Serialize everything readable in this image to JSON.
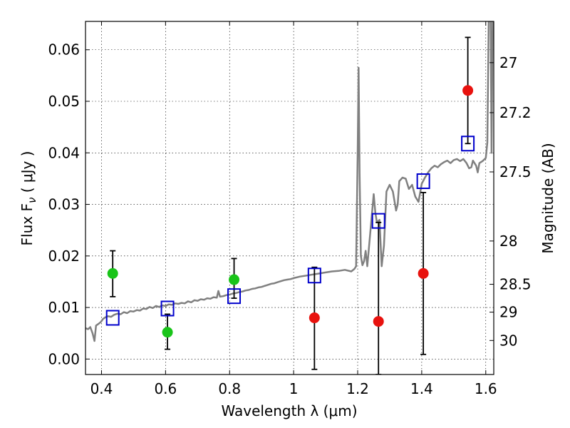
{
  "chart_data": {
    "type": "scatter",
    "xlabel": "Wavelength  λ (μm)",
    "ylabel": "Flux  F",
    "ylabel_sub": "ν",
    "ylabel_unit": "  ( μJy )",
    "y2label": "Magnitude (AB)",
    "xlim": [
      0.35,
      1.625
    ],
    "ylim": [
      -0.003,
      0.0655
    ],
    "grid": true,
    "x_ticks": [
      {
        "value": 0.4,
        "label": "0.4"
      },
      {
        "value": 0.6,
        "label": "0.6"
      },
      {
        "value": 0.8,
        "label": "0.8"
      },
      {
        "value": 1.0,
        "label": "1"
      },
      {
        "value": 1.2,
        "label": "1.2"
      },
      {
        "value": 1.4,
        "label": "1.4"
      },
      {
        "value": 1.6,
        "label": "1.6"
      }
    ],
    "y_ticks": [
      {
        "value": 0.0,
        "label": "0.00"
      },
      {
        "value": 0.01,
        "label": "0.01"
      },
      {
        "value": 0.02,
        "label": "0.02"
      },
      {
        "value": 0.03,
        "label": "0.03"
      },
      {
        "value": 0.04,
        "label": "0.04"
      },
      {
        "value": 0.05,
        "label": "0.05"
      },
      {
        "value": 0.06,
        "label": "0.06"
      }
    ],
    "y2_ticks": [
      {
        "flux": 0.0575,
        "label": "27"
      },
      {
        "flux": 0.0478,
        "label": "27.2"
      },
      {
        "flux": 0.0363,
        "label": "27.5"
      },
      {
        "flux": 0.0229,
        "label": "28"
      },
      {
        "flux": 0.0145,
        "label": "28.5"
      },
      {
        "flux": 0.0091,
        "label": "29"
      },
      {
        "flux": 0.0036,
        "label": "30"
      }
    ],
    "series": [
      {
        "kind": "model-spectrum",
        "color": "#808080",
        "points": [
          [
            0.35,
            0.006
          ],
          [
            0.358,
            0.0058
          ],
          [
            0.365,
            0.0062
          ],
          [
            0.372,
            0.005
          ],
          [
            0.378,
            0.0035
          ],
          [
            0.383,
            0.0065
          ],
          [
            0.39,
            0.0068
          ],
          [
            0.398,
            0.0072
          ],
          [
            0.405,
            0.0078
          ],
          [
            0.412,
            0.0081
          ],
          [
            0.42,
            0.0083
          ],
          [
            0.43,
            0.0082
          ],
          [
            0.44,
            0.0086
          ],
          [
            0.45,
            0.0088
          ],
          [
            0.46,
            0.0087
          ],
          [
            0.47,
            0.0091
          ],
          [
            0.48,
            0.0089
          ],
          [
            0.49,
            0.0093
          ],
          [
            0.5,
            0.0092
          ],
          [
            0.51,
            0.0095
          ],
          [
            0.52,
            0.0094
          ],
          [
            0.53,
            0.0098
          ],
          [
            0.54,
            0.0097
          ],
          [
            0.55,
            0.0101
          ],
          [
            0.56,
            0.0099
          ],
          [
            0.57,
            0.0103
          ],
          [
            0.58,
            0.0101
          ],
          [
            0.59,
            0.0104
          ],
          [
            0.6,
            0.0103
          ],
          [
            0.61,
            0.0106
          ],
          [
            0.62,
            0.0105
          ],
          [
            0.63,
            0.0108
          ],
          [
            0.64,
            0.0107
          ],
          [
            0.65,
            0.0109
          ],
          [
            0.66,
            0.0108
          ],
          [
            0.67,
            0.0112
          ],
          [
            0.68,
            0.011
          ],
          [
            0.69,
            0.0114
          ],
          [
            0.7,
            0.0113
          ],
          [
            0.71,
            0.0116
          ],
          [
            0.72,
            0.0115
          ],
          [
            0.73,
            0.0118
          ],
          [
            0.74,
            0.0117
          ],
          [
            0.75,
            0.012
          ],
          [
            0.76,
            0.0119
          ],
          [
            0.765,
            0.0132
          ],
          [
            0.77,
            0.0121
          ],
          [
            0.78,
            0.0122
          ],
          [
            0.79,
            0.0124
          ],
          [
            0.8,
            0.0125
          ],
          [
            0.81,
            0.0127
          ],
          [
            0.82,
            0.0128
          ],
          [
            0.83,
            0.013
          ],
          [
            0.84,
            0.0131
          ],
          [
            0.85,
            0.0133
          ],
          [
            0.86,
            0.0134
          ],
          [
            0.87,
            0.0136
          ],
          [
            0.88,
            0.0137
          ],
          [
            0.89,
            0.0139
          ],
          [
            0.9,
            0.014
          ],
          [
            0.91,
            0.0142
          ],
          [
            0.92,
            0.0144
          ],
          [
            0.93,
            0.0146
          ],
          [
            0.94,
            0.0147
          ],
          [
            0.95,
            0.0149
          ],
          [
            0.96,
            0.0151
          ],
          [
            0.97,
            0.0153
          ],
          [
            0.98,
            0.0154
          ],
          [
            0.99,
            0.0155
          ],
          [
            1.0,
            0.0157
          ],
          [
            1.02,
            0.016
          ],
          [
            1.04,
            0.0162
          ],
          [
            1.06,
            0.0164
          ],
          [
            1.08,
            0.0166
          ],
          [
            1.1,
            0.0168
          ],
          [
            1.12,
            0.017
          ],
          [
            1.14,
            0.0171
          ],
          [
            1.16,
            0.0173
          ],
          [
            1.18,
            0.017
          ],
          [
            1.19,
            0.0175
          ],
          [
            1.195,
            0.018
          ],
          [
            1.2,
            0.04
          ],
          [
            1.203,
            0.0565
          ],
          [
            1.206,
            0.036
          ],
          [
            1.21,
            0.02
          ],
          [
            1.215,
            0.0182
          ],
          [
            1.22,
            0.019
          ],
          [
            1.225,
            0.021
          ],
          [
            1.23,
            0.018
          ],
          [
            1.24,
            0.025
          ],
          [
            1.25,
            0.032
          ],
          [
            1.255,
            0.0285
          ],
          [
            1.26,
            0.0265
          ],
          [
            1.268,
            0.027
          ],
          [
            1.275,
            0.018
          ],
          [
            1.282,
            0.022
          ],
          [
            1.29,
            0.0325
          ],
          [
            1.3,
            0.0338
          ],
          [
            1.31,
            0.0325
          ],
          [
            1.32,
            0.0288
          ],
          [
            1.325,
            0.03
          ],
          [
            1.33,
            0.0345
          ],
          [
            1.34,
            0.0352
          ],
          [
            1.35,
            0.035
          ],
          [
            1.36,
            0.033
          ],
          [
            1.37,
            0.0338
          ],
          [
            1.38,
            0.0315
          ],
          [
            1.39,
            0.0305
          ],
          [
            1.4,
            0.034
          ],
          [
            1.41,
            0.0352
          ],
          [
            1.42,
            0.0362
          ],
          [
            1.43,
            0.037
          ],
          [
            1.44,
            0.0375
          ],
          [
            1.45,
            0.0372
          ],
          [
            1.46,
            0.0378
          ],
          [
            1.47,
            0.0382
          ],
          [
            1.48,
            0.0385
          ],
          [
            1.49,
            0.038
          ],
          [
            1.5,
            0.0386
          ],
          [
            1.51,
            0.0388
          ],
          [
            1.52,
            0.0384
          ],
          [
            1.53,
            0.0388
          ],
          [
            1.54,
            0.038
          ],
          [
            1.548,
            0.037
          ],
          [
            1.555,
            0.0372
          ],
          [
            1.56,
            0.0385
          ],
          [
            1.57,
            0.0375
          ],
          [
            1.575,
            0.0362
          ],
          [
            1.58,
            0.038
          ],
          [
            1.59,
            0.0384
          ],
          [
            1.6,
            0.039
          ],
          [
            1.605,
            0.042
          ],
          [
            1.61,
            0.07
          ],
          [
            1.615,
            0.07
          ],
          [
            1.618,
            0.04
          ],
          [
            1.622,
            0.07
          ]
        ]
      },
      {
        "kind": "model-photometry",
        "marker": "square",
        "color": "#0000cc",
        "points": [
          [
            0.435,
            0.008
          ],
          [
            0.606,
            0.0098
          ],
          [
            0.814,
            0.0122
          ],
          [
            1.065,
            0.0162
          ],
          [
            1.265,
            0.0268
          ],
          [
            1.405,
            0.0345
          ],
          [
            1.544,
            0.0418
          ]
        ]
      },
      {
        "kind": "detections",
        "marker": "circle",
        "color": "#19c419",
        "points": [
          {
            "x": 0.435,
            "y": 0.0166,
            "yerr_lo": 0.0121,
            "yerr_hi": 0.021
          },
          {
            "x": 0.606,
            "y": 0.0052,
            "yerr_lo": 0.0019,
            "yerr_hi": 0.0087
          },
          {
            "x": 0.814,
            "y": 0.0154,
            "yerr_lo": 0.0118,
            "yerr_hi": 0.0195
          }
        ]
      },
      {
        "kind": "upper-limits",
        "marker": "circle",
        "color": "#e8120e",
        "points": [
          {
            "x": 1.065,
            "y": 0.008,
            "yerr_lo": -0.002,
            "yerr_hi": 0.0178
          },
          {
            "x": 1.265,
            "y": 0.0073,
            "yerr_lo": -0.003,
            "yerr_hi": 0.0265
          },
          {
            "x": 1.405,
            "y": 0.0166,
            "yerr_lo": 0.0009,
            "yerr_hi": 0.0323
          },
          {
            "x": 1.544,
            "y": 0.0521,
            "yerr_lo": 0.0418,
            "yerr_hi": 0.0624
          }
        ]
      }
    ]
  }
}
